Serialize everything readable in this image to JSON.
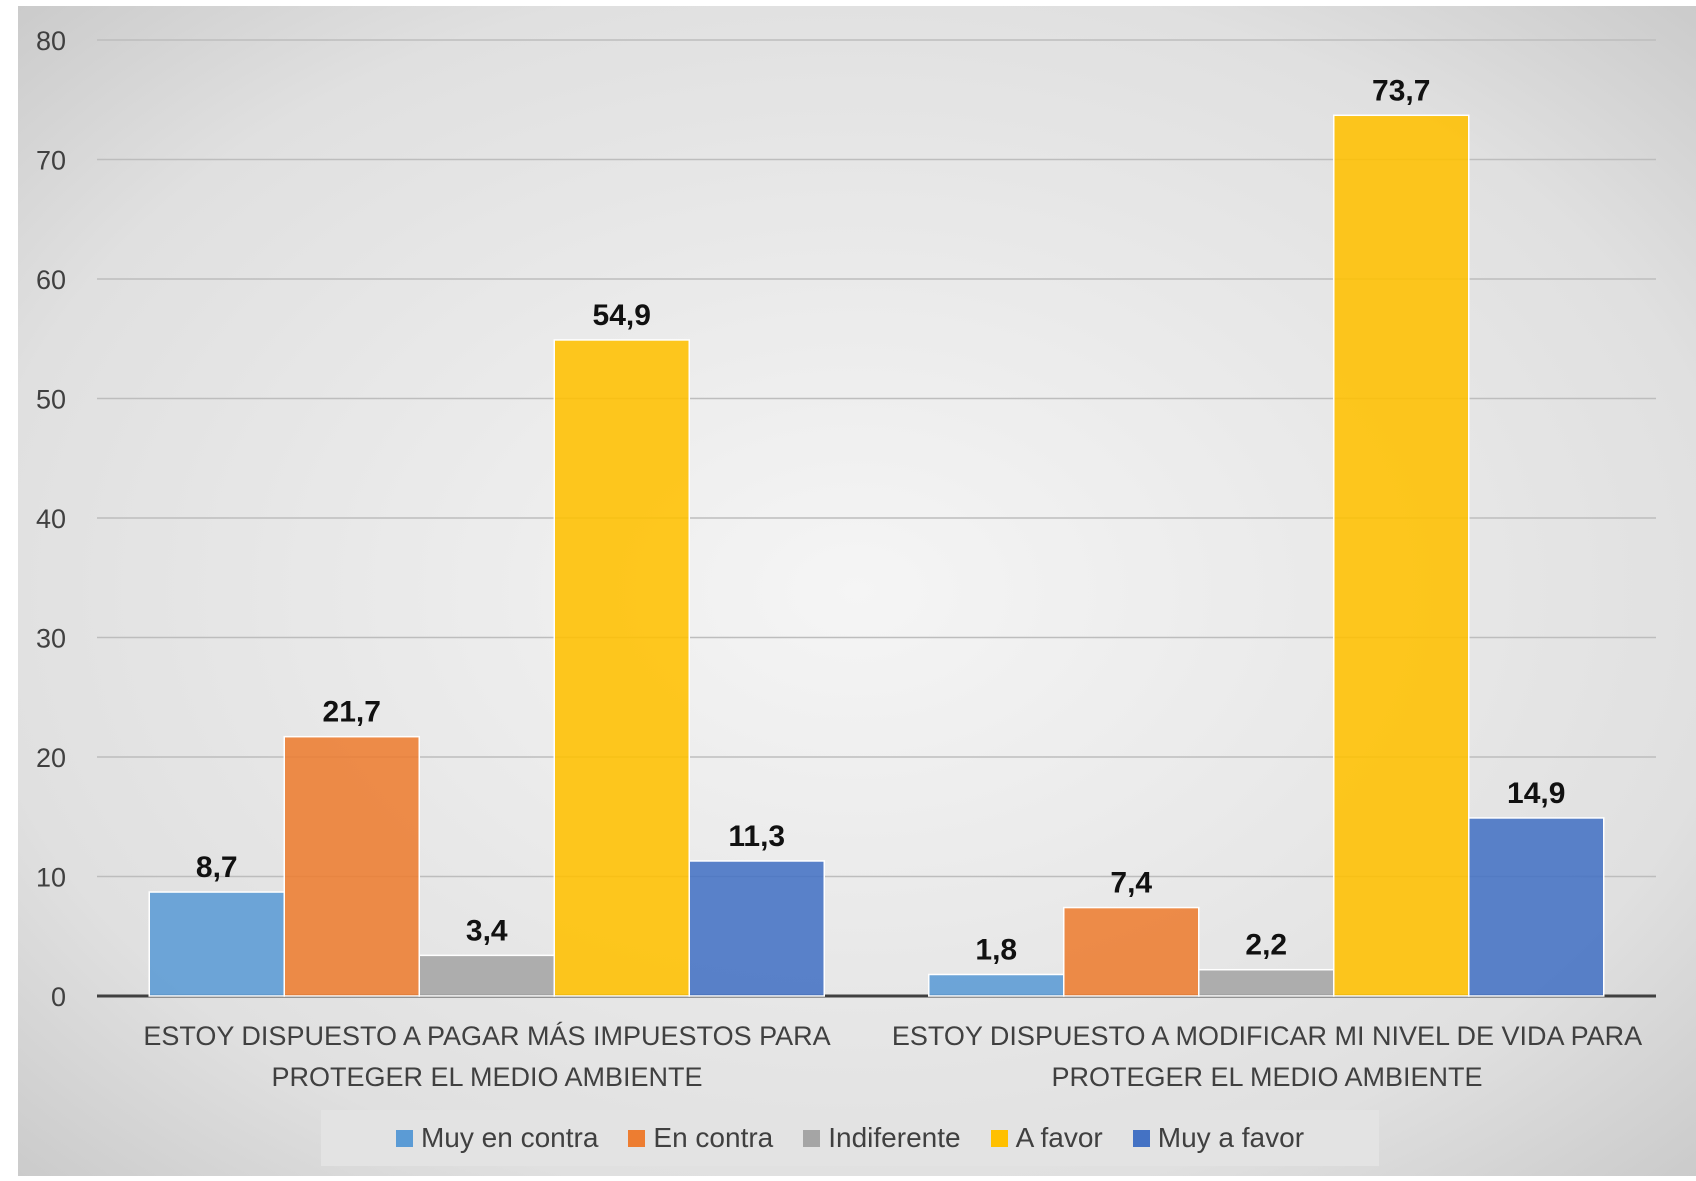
{
  "chart_data": {
    "type": "bar",
    "categories": [
      "ESTOY DISPUESTO A PAGAR MÁS IMPUESTOS PARA PROTEGER EL MEDIO AMBIENTE",
      "ESTOY DISPUESTO A MODIFICAR MI NIVEL DE VIDA PARA PROTEGER EL MEDIO AMBIENTE"
    ],
    "category_lines": [
      [
        "ESTOY DISPUESTO A PAGAR MÁS IMPUESTOS PARA",
        "PROTEGER EL MEDIO AMBIENTE"
      ],
      [
        "ESTOY DISPUESTO A MODIFICAR MI NIVEL DE VIDA PARA",
        "PROTEGER EL MEDIO AMBIENTE"
      ]
    ],
    "series": [
      {
        "name": "Muy en contra",
        "color": "#5b9bd5",
        "values": [
          8.7,
          1.8
        ],
        "labels": [
          "8,7",
          "1,8"
        ]
      },
      {
        "name": "En contra",
        "color": "#ed7d31",
        "values": [
          21.7,
          7.4
        ],
        "labels": [
          "21,7",
          "7,4"
        ]
      },
      {
        "name": "Indiferente",
        "color": "#a5a5a5",
        "values": [
          3.4,
          2.2
        ],
        "labels": [
          "3,4",
          "2,2"
        ]
      },
      {
        "name": "A favor",
        "color": "#ffc000",
        "values": [
          54.9,
          73.7
        ],
        "labels": [
          "54,9",
          "73,7"
        ]
      },
      {
        "name": "Muy a favor",
        "color": "#4472c4",
        "values": [
          11.3,
          14.9
        ],
        "labels": [
          "11,3",
          "14,9"
        ]
      }
    ],
    "ylim": [
      0,
      80
    ],
    "yticks": [
      0,
      10,
      20,
      30,
      40,
      50,
      60,
      70,
      80
    ],
    "grid": true,
    "legend_position": "bottom"
  }
}
